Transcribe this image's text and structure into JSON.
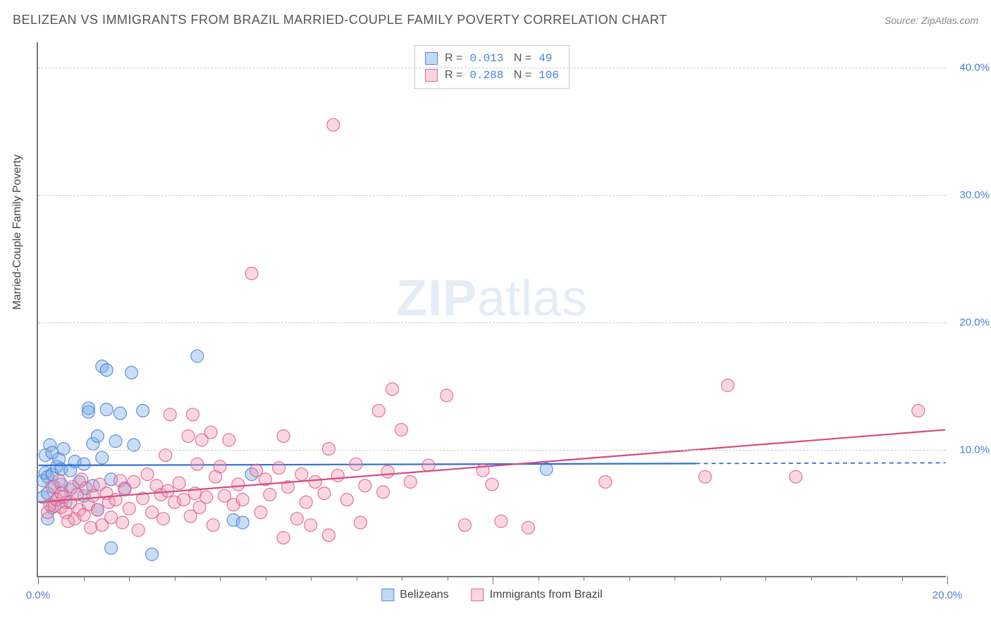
{
  "title": "BELIZEAN VS IMMIGRANTS FROM BRAZIL MARRIED-COUPLE FAMILY POVERTY CORRELATION CHART",
  "source": "Source: ZipAtlas.com",
  "watermark_zip": "ZIP",
  "watermark_atlas": "atlas",
  "y_axis_title": "Married-Couple Family Poverty",
  "chart": {
    "type": "scatter",
    "background_color": "#ffffff",
    "grid_color": "#cccccc",
    "grid_dash": "4,4",
    "axis_color": "#777777",
    "xlim": [
      0,
      20
    ],
    "ylim": [
      0,
      42
    ],
    "x_ticks_major": [
      0,
      10,
      20
    ],
    "x_ticks_minor": [
      1,
      2,
      3,
      4,
      5,
      6,
      7,
      8,
      9,
      11,
      12,
      13,
      14,
      15,
      16,
      17,
      18,
      19
    ],
    "y_gridlines": [
      10,
      20,
      30,
      40
    ],
    "x_labels": [
      {
        "v": 0,
        "t": "0.0%"
      },
      {
        "v": 20,
        "t": "20.0%"
      }
    ],
    "y_labels": [
      {
        "v": 10,
        "t": "10.0%"
      },
      {
        "v": 20,
        "t": "20.0%"
      },
      {
        "v": 30,
        "t": "30.0%"
      },
      {
        "v": 40,
        "t": "40.0%"
      }
    ],
    "marker_radius": 9,
    "marker_stroke_width": 1.2,
    "series": [
      {
        "name": "Belizeans",
        "fill": "rgba(120,170,230,0.40)",
        "stroke": "rgba(70,130,210,0.85)",
        "R": "0.013",
        "N": "49",
        "trend": {
          "y0": 8.7,
          "y1": 8.9,
          "solid_until_x": 14.5,
          "color": "#2e6fd6",
          "width": 2.2
        },
        "points": [
          [
            0.1,
            6.2
          ],
          [
            0.1,
            7.5
          ],
          [
            0.15,
            8.1
          ],
          [
            0.15,
            9.5
          ],
          [
            0.2,
            4.5
          ],
          [
            0.2,
            6.5
          ],
          [
            0.2,
            7.8
          ],
          [
            0.25,
            10.3
          ],
          [
            0.3,
            5.4
          ],
          [
            0.3,
            8.0
          ],
          [
            0.3,
            9.7
          ],
          [
            0.35,
            7.0
          ],
          [
            0.4,
            6.0
          ],
          [
            0.4,
            8.6
          ],
          [
            0.45,
            9.2
          ],
          [
            0.5,
            7.2
          ],
          [
            0.5,
            8.4
          ],
          [
            0.55,
            10.0
          ],
          [
            0.6,
            5.8
          ],
          [
            0.7,
            6.8
          ],
          [
            0.7,
            8.3
          ],
          [
            0.8,
            9.0
          ],
          [
            0.9,
            7.4
          ],
          [
            1.0,
            6.3
          ],
          [
            1.0,
            8.8
          ],
          [
            1.1,
            13.2
          ],
          [
            1.1,
            12.9
          ],
          [
            1.2,
            10.4
          ],
          [
            1.2,
            7.1
          ],
          [
            1.3,
            5.2
          ],
          [
            1.3,
            11.0
          ],
          [
            1.4,
            16.5
          ],
          [
            1.4,
            9.3
          ],
          [
            1.5,
            13.1
          ],
          [
            1.5,
            16.2
          ],
          [
            1.6,
            7.6
          ],
          [
            1.6,
            2.2
          ],
          [
            1.7,
            10.6
          ],
          [
            1.8,
            12.8
          ],
          [
            1.9,
            6.9
          ],
          [
            2.05,
            16.0
          ],
          [
            2.1,
            10.3
          ],
          [
            2.3,
            13.0
          ],
          [
            2.5,
            1.7
          ],
          [
            3.5,
            17.3
          ],
          [
            4.3,
            4.4
          ],
          [
            4.5,
            4.2
          ],
          [
            4.7,
            8.0
          ],
          [
            11.2,
            8.4
          ]
        ]
      },
      {
        "name": "Immigrants from Brazil",
        "fill": "rgba(240,150,180,0.38)",
        "stroke": "rgba(225,90,140,0.85)",
        "R": "0.288",
        "N": "106",
        "trend": {
          "y0": 5.8,
          "y1": 11.5,
          "solid_until_x": 20,
          "color": "#d84a82",
          "width": 2.2
        },
        "points": [
          [
            0.2,
            5.0
          ],
          [
            0.25,
            5.6
          ],
          [
            0.3,
            7.0
          ],
          [
            0.35,
            5.5
          ],
          [
            0.4,
            6.0
          ],
          [
            0.45,
            7.5
          ],
          [
            0.5,
            6.5
          ],
          [
            0.5,
            5.4
          ],
          [
            0.55,
            6.2
          ],
          [
            0.6,
            5.0
          ],
          [
            0.65,
            4.3
          ],
          [
            0.7,
            5.8
          ],
          [
            0.75,
            7.0
          ],
          [
            0.8,
            4.5
          ],
          [
            0.85,
            6.4
          ],
          [
            0.9,
            5.2
          ],
          [
            0.95,
            7.6
          ],
          [
            1.0,
            4.8
          ],
          [
            1.05,
            6.9
          ],
          [
            1.1,
            5.6
          ],
          [
            1.15,
            3.8
          ],
          [
            1.2,
            6.3
          ],
          [
            1.3,
            5.2
          ],
          [
            1.35,
            7.2
          ],
          [
            1.4,
            4.0
          ],
          [
            1.5,
            6.5
          ],
          [
            1.55,
            5.8
          ],
          [
            1.6,
            4.6
          ],
          [
            1.7,
            6.0
          ],
          [
            1.8,
            7.5
          ],
          [
            1.85,
            4.2
          ],
          [
            1.9,
            6.8
          ],
          [
            2.0,
            5.3
          ],
          [
            2.1,
            7.4
          ],
          [
            2.2,
            3.6
          ],
          [
            2.3,
            6.1
          ],
          [
            2.4,
            8.0
          ],
          [
            2.5,
            5.0
          ],
          [
            2.6,
            7.1
          ],
          [
            2.7,
            6.4
          ],
          [
            2.75,
            4.5
          ],
          [
            2.8,
            9.5
          ],
          [
            2.85,
            6.7
          ],
          [
            2.9,
            12.7
          ],
          [
            3.0,
            5.8
          ],
          [
            3.1,
            7.3
          ],
          [
            3.2,
            6.0
          ],
          [
            3.3,
            11.0
          ],
          [
            3.35,
            4.7
          ],
          [
            3.4,
            12.7
          ],
          [
            3.45,
            6.5
          ],
          [
            3.5,
            8.8
          ],
          [
            3.55,
            5.4
          ],
          [
            3.6,
            10.7
          ],
          [
            3.7,
            6.2
          ],
          [
            3.8,
            11.3
          ],
          [
            3.85,
            4.0
          ],
          [
            3.9,
            7.8
          ],
          [
            4.0,
            8.6
          ],
          [
            4.1,
            6.3
          ],
          [
            4.2,
            10.7
          ],
          [
            4.3,
            5.6
          ],
          [
            4.4,
            7.2
          ],
          [
            4.5,
            6.0
          ],
          [
            4.7,
            23.8
          ],
          [
            4.8,
            8.3
          ],
          [
            4.9,
            5.0
          ],
          [
            5.0,
            7.6
          ],
          [
            5.1,
            6.4
          ],
          [
            5.3,
            8.5
          ],
          [
            5.4,
            11.0
          ],
          [
            5.4,
            3.0
          ],
          [
            5.5,
            7.0
          ],
          [
            5.7,
            4.5
          ],
          [
            5.8,
            8.0
          ],
          [
            5.9,
            5.8
          ],
          [
            6.0,
            4.0
          ],
          [
            6.1,
            7.4
          ],
          [
            6.3,
            6.5
          ],
          [
            6.4,
            10.0
          ],
          [
            6.4,
            3.2
          ],
          [
            6.5,
            35.5
          ],
          [
            6.6,
            7.9
          ],
          [
            6.8,
            6.0
          ],
          [
            7.0,
            8.8
          ],
          [
            7.1,
            4.2
          ],
          [
            7.2,
            7.1
          ],
          [
            7.5,
            13.0
          ],
          [
            7.6,
            6.6
          ],
          [
            7.7,
            8.2
          ],
          [
            7.8,
            14.7
          ],
          [
            8.0,
            11.5
          ],
          [
            8.2,
            7.4
          ],
          [
            8.6,
            8.7
          ],
          [
            9.0,
            14.2
          ],
          [
            9.4,
            4.0
          ],
          [
            9.8,
            8.3
          ],
          [
            10.0,
            7.2
          ],
          [
            10.2,
            4.3
          ],
          [
            10.8,
            3.8
          ],
          [
            12.5,
            7.4
          ],
          [
            14.7,
            7.8
          ],
          [
            15.2,
            15.0
          ],
          [
            16.7,
            7.8
          ],
          [
            19.4,
            13.0
          ]
        ]
      }
    ]
  },
  "legend_series1": "Belizeans",
  "legend_series2": "Immigrants from Brazil"
}
